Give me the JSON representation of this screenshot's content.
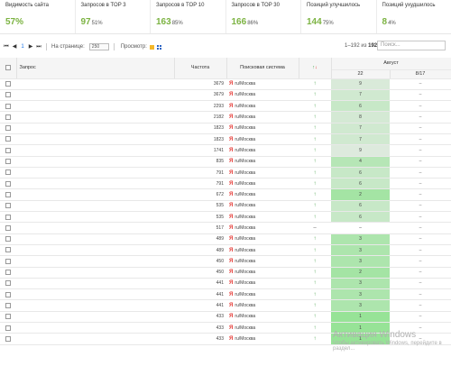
{
  "stats": [
    {
      "label": "Видимость сайта",
      "value": "57%",
      "pct": ""
    },
    {
      "label": "Запросов в TOP 3",
      "value": "97",
      "pct": "51%"
    },
    {
      "label": "Запросов в TOP 10",
      "value": "163",
      "pct": "85%"
    },
    {
      "label": "Запросов в TOP 30",
      "value": "166",
      "pct": "86%"
    },
    {
      "label": "Позиций улучшилось",
      "value": "144",
      "pct": "75%"
    },
    {
      "label": "Позиций ухудшилось",
      "value": "8",
      "pct": "4%"
    }
  ],
  "toolbar": {
    "pager_icons": [
      "first-page-icon",
      "prev-page-icon",
      "next-page-icon",
      "last-page-icon"
    ],
    "page_current": "1",
    "perpage_label": "На странице:",
    "perpage_value": "250",
    "view_label": "Просмотр:",
    "range_prefix": "1–192 из ",
    "range_total": "192",
    "search_placeholder": "Поиск..."
  },
  "table": {
    "headers": {
      "query": "Запрос",
      "frequency": "Частота",
      "engine": "Поисковая система",
      "trend_up": "↑",
      "trend_down": "↓",
      "month": "Август",
      "day1": "22",
      "day2": "8/17"
    },
    "engine_label": "ru/Москва",
    "rows": [
      {
        "freq": "3679",
        "trend": "↑",
        "pos": "9",
        "level": 0.15,
        "prev": "–"
      },
      {
        "freq": "3679",
        "trend": "↑",
        "pos": "7",
        "level": 0.25,
        "prev": "–"
      },
      {
        "freq": "2293",
        "trend": "↑",
        "pos": "6",
        "level": 0.35,
        "prev": "–"
      },
      {
        "freq": "2182",
        "trend": "↑",
        "pos": "8",
        "level": 0.2,
        "prev": "–"
      },
      {
        "freq": "1823",
        "trend": "↑",
        "pos": "7",
        "level": 0.25,
        "prev": "–"
      },
      {
        "freq": "1823",
        "trend": "↑",
        "pos": "7",
        "level": 0.25,
        "prev": "–"
      },
      {
        "freq": "1741",
        "trend": "↑",
        "pos": "9",
        "level": 0.1,
        "prev": "–"
      },
      {
        "freq": "835",
        "trend": "↑",
        "pos": "4",
        "level": 0.55,
        "prev": "–"
      },
      {
        "freq": "791",
        "trend": "↑",
        "pos": "6",
        "level": 0.35,
        "prev": "–"
      },
      {
        "freq": "791",
        "trend": "↑",
        "pos": "6",
        "level": 0.35,
        "prev": "–"
      },
      {
        "freq": "672",
        "trend": "↑",
        "pos": "2",
        "level": 0.75,
        "prev": "–"
      },
      {
        "freq": "535",
        "trend": "↑",
        "pos": "6",
        "level": 0.35,
        "prev": "–"
      },
      {
        "freq": "535",
        "trend": "↑",
        "pos": "6",
        "level": 0.35,
        "prev": "–"
      },
      {
        "freq": "517",
        "trend": "–",
        "pos": "–",
        "level": 0,
        "prev": "–"
      },
      {
        "freq": "489",
        "trend": "↑",
        "pos": "3",
        "level": 0.65,
        "prev": "–"
      },
      {
        "freq": "489",
        "trend": "↑",
        "pos": "3",
        "level": 0.65,
        "prev": "–"
      },
      {
        "freq": "450",
        "trend": "↑",
        "pos": "3",
        "level": 0.65,
        "prev": "–"
      },
      {
        "freq": "450",
        "trend": "↑",
        "pos": "2",
        "level": 0.75,
        "prev": "–"
      },
      {
        "freq": "441",
        "trend": "↑",
        "pos": "3",
        "level": 0.65,
        "prev": "–"
      },
      {
        "freq": "441",
        "trend": "↑",
        "pos": "3",
        "level": 0.65,
        "prev": "–"
      },
      {
        "freq": "441",
        "trend": "↑",
        "pos": "3",
        "level": 0.65,
        "prev": "–"
      },
      {
        "freq": "433",
        "trend": "↑",
        "pos": "1",
        "level": 0.9,
        "prev": "–"
      },
      {
        "freq": "433",
        "trend": "↑",
        "pos": "1",
        "level": 0.9,
        "prev": "–"
      },
      {
        "freq": "433",
        "trend": "↑",
        "pos": "1",
        "level": 0.9,
        "prev": "–"
      }
    ]
  },
  "watermark": {
    "title": "Активация Windows",
    "subtitle": "Чтобы активировать Windows, перейдите в раздел..."
  },
  "colors": {
    "accent_green": "#7cb342",
    "pos_high": "#8ee28e",
    "pos_low": "#e6e6e6",
    "up": "#43a047",
    "down": "#e53935"
  }
}
